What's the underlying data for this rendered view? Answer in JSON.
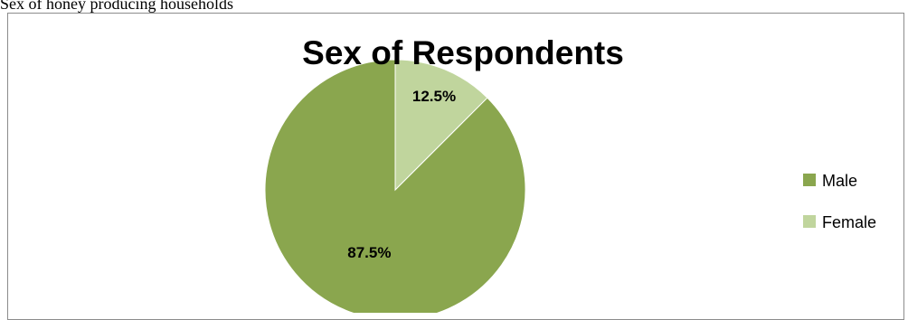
{
  "caption": "Sex of honey producing households",
  "chart_data": {
    "type": "pie",
    "title": "Sex of Respondents",
    "categories": [
      "Male",
      "Female"
    ],
    "values": [
      87.5,
      12.5
    ],
    "labels": [
      "87.5%",
      "12.5%"
    ],
    "colors": [
      "#8aa64e",
      "#c0d59d"
    ],
    "legend": "right",
    "start_angle_deg": 0,
    "direction": "counter-clockwise"
  }
}
